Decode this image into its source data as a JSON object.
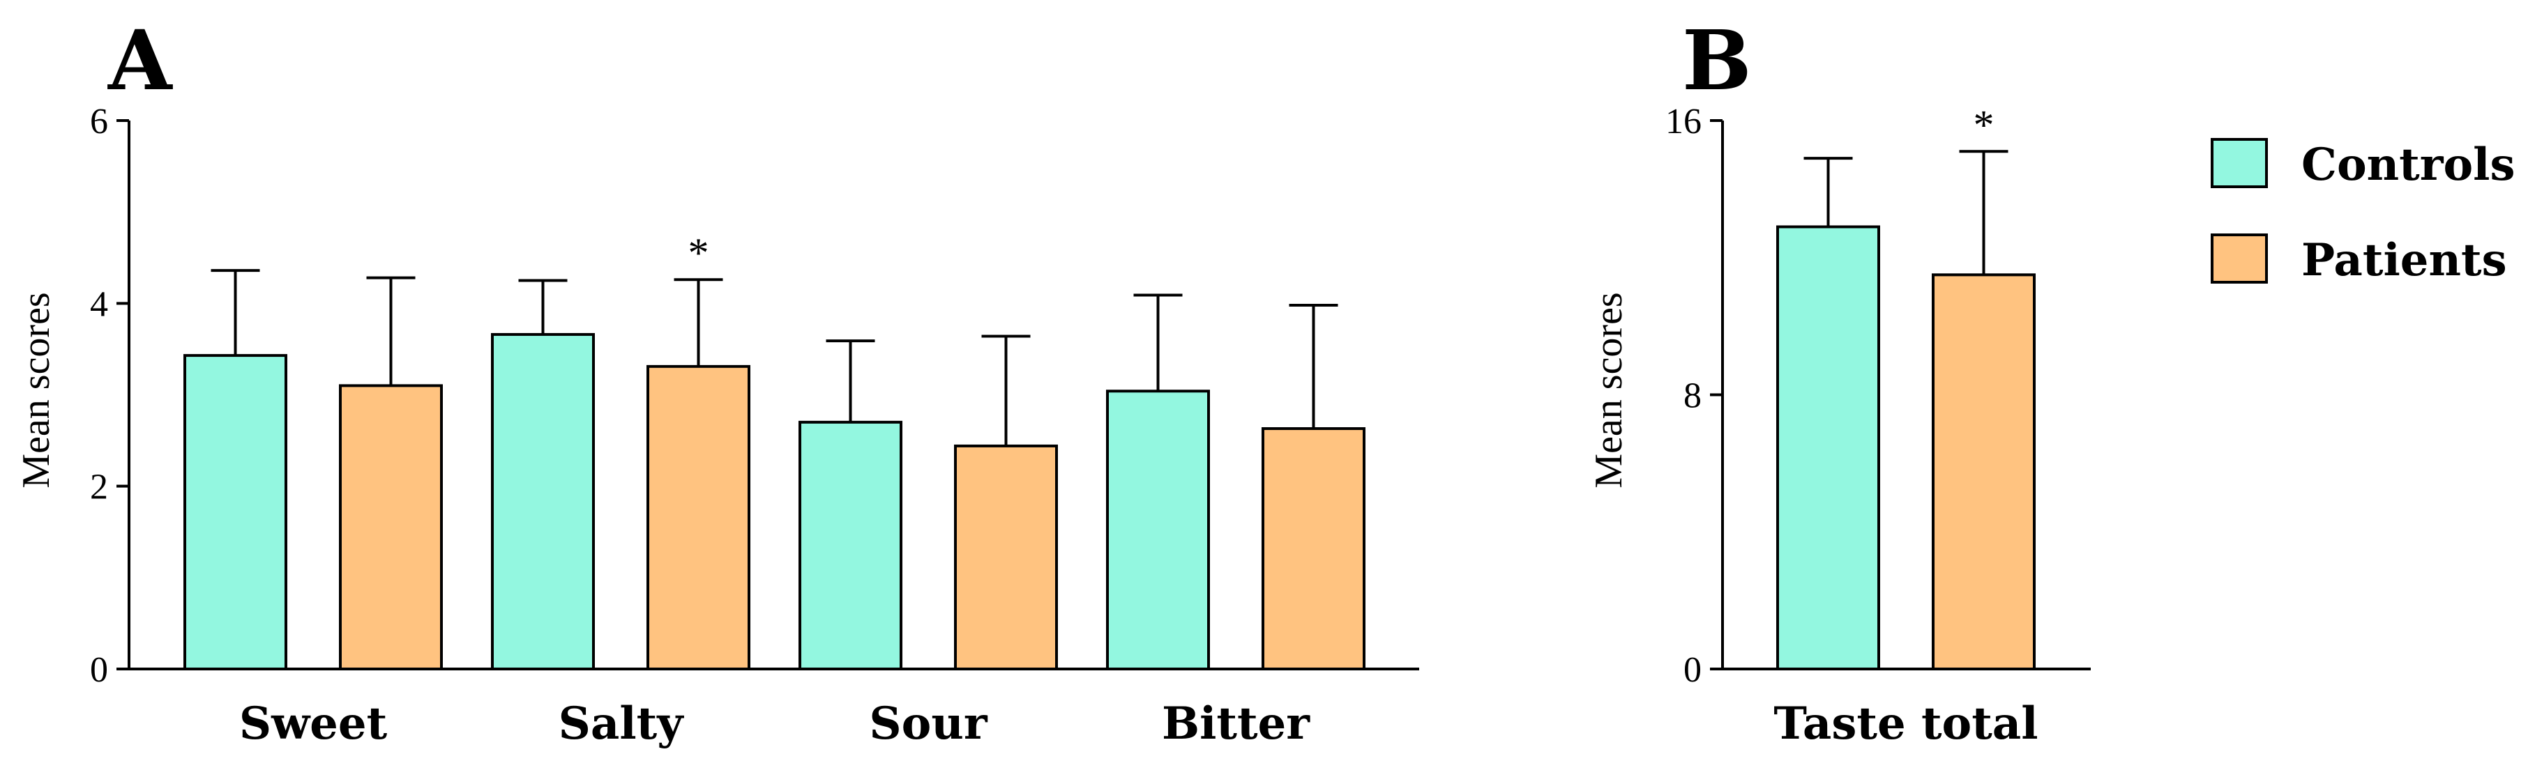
{
  "colors": {
    "controls": "#93F7E0",
    "patients": "#FFC380"
  },
  "legend": [
    {
      "name": "Controls",
      "color": "#93F7E0"
    },
    {
      "name": "Patients",
      "color": "#FFC380"
    }
  ],
  "chart_data": [
    {
      "type": "bar",
      "panel_label": "A",
      "ylabel": "Mean scores",
      "ylim": [
        0,
        6
      ],
      "yticks": [
        0,
        2,
        4,
        6
      ],
      "categories": [
        "Sweet",
        "Salty",
        "Sour",
        "Bitter"
      ],
      "series": [
        {
          "name": "Controls",
          "values": [
            3.43,
            3.66,
            2.7,
            3.04
          ],
          "errors": [
            0.93,
            0.59,
            0.89,
            1.05
          ]
        },
        {
          "name": "Patients",
          "values": [
            3.1,
            3.31,
            2.44,
            2.63
          ],
          "errors": [
            1.18,
            0.95,
            1.2,
            1.35
          ]
        }
      ],
      "significance": [
        {
          "category": "Salty",
          "series": "Patients",
          "marker": "*"
        }
      ]
    },
    {
      "type": "bar",
      "panel_label": "B",
      "ylabel": "Mean scores",
      "ylim": [
        0,
        16
      ],
      "yticks": [
        0,
        8,
        16
      ],
      "categories": [
        "Taste total"
      ],
      "series": [
        {
          "name": "Controls",
          "values": [
            12.9
          ],
          "errors": [
            2.0
          ]
        },
        {
          "name": "Patients",
          "values": [
            11.5
          ],
          "errors": [
            3.6
          ]
        }
      ],
      "significance": [
        {
          "category": "Taste total",
          "series": "Patients",
          "marker": "*"
        }
      ]
    }
  ]
}
